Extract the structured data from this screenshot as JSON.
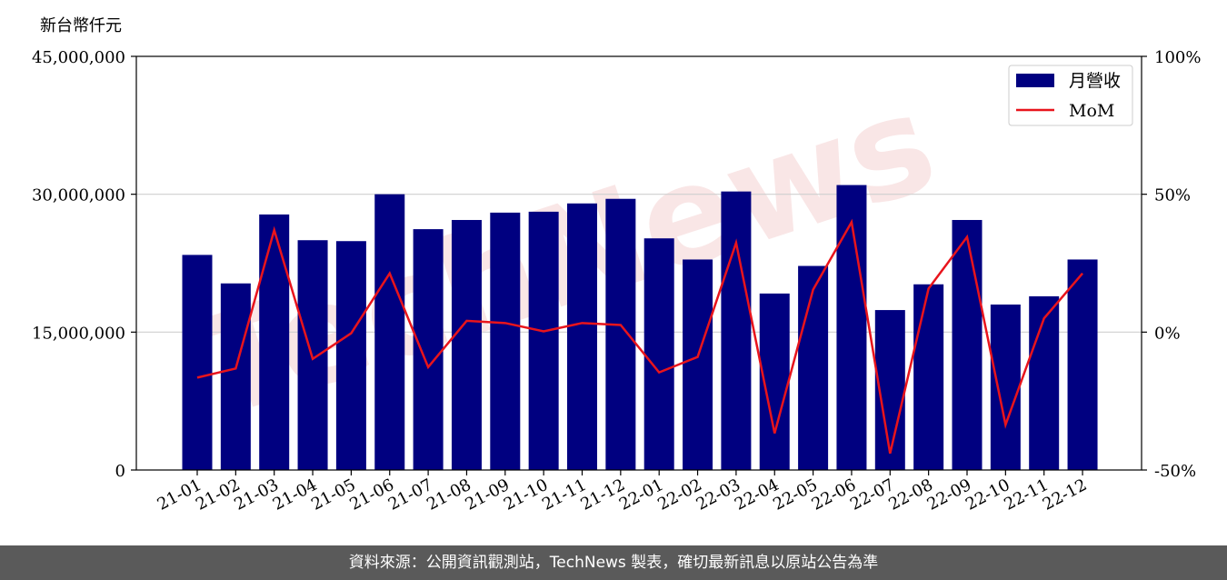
{
  "unit_label": "新台幣仟元",
  "footer_text": "資料來源：公開資訊觀測站，TechNews 製表，確切最新訊息以原站公告為準",
  "watermark": "TechNews",
  "colors": {
    "bar": "#000080",
    "line": "#e8141c",
    "footer_bg": "#5a5a5a",
    "watermark": "#f5d6d6"
  },
  "chart_data": {
    "type": "bar",
    "categories": [
      "21-01",
      "21-02",
      "21-03",
      "21-04",
      "21-05",
      "21-06",
      "21-07",
      "21-08",
      "21-09",
      "21-10",
      "21-11",
      "21-12",
      "22-01",
      "22-02",
      "22-03",
      "22-04",
      "22-05",
      "22-06",
      "22-07",
      "22-08",
      "22-09",
      "22-10",
      "22-11",
      "22-12"
    ],
    "series": [
      {
        "name": "月營收",
        "axis": "left",
        "kind": "bar",
        "values": [
          23400000,
          20300000,
          27800000,
          25000000,
          24900000,
          30000000,
          26200000,
          27200000,
          28000000,
          28100000,
          29000000,
          29500000,
          25200000,
          22900000,
          30300000,
          19200000,
          22200000,
          31000000,
          17400000,
          20200000,
          27200000,
          18000000,
          18900000,
          22900000
        ]
      },
      {
        "name": "MoM",
        "axis": "right",
        "kind": "line",
        "unit": "%",
        "values": [
          -16.5,
          -13.2,
          37.0,
          -9.7,
          -0.4,
          21.3,
          -12.7,
          4.1,
          3.3,
          0.3,
          3.3,
          2.6,
          -14.6,
          -9.0,
          32.4,
          -36.7,
          15.4,
          39.9,
          -44.0,
          15.8,
          34.5,
          -33.6,
          5.0,
          21.3
        ]
      }
    ],
    "ylim_left": [
      0,
      45000000
    ],
    "yticks_left": [
      "0",
      "15,000,000",
      "30,000,000",
      "45,000,000"
    ],
    "ylim_right": [
      -50,
      100
    ],
    "yticks_right": [
      "-50%",
      "0%",
      "50%",
      "100%"
    ],
    "grid": "horizontal",
    "legend_position": "top-right"
  }
}
